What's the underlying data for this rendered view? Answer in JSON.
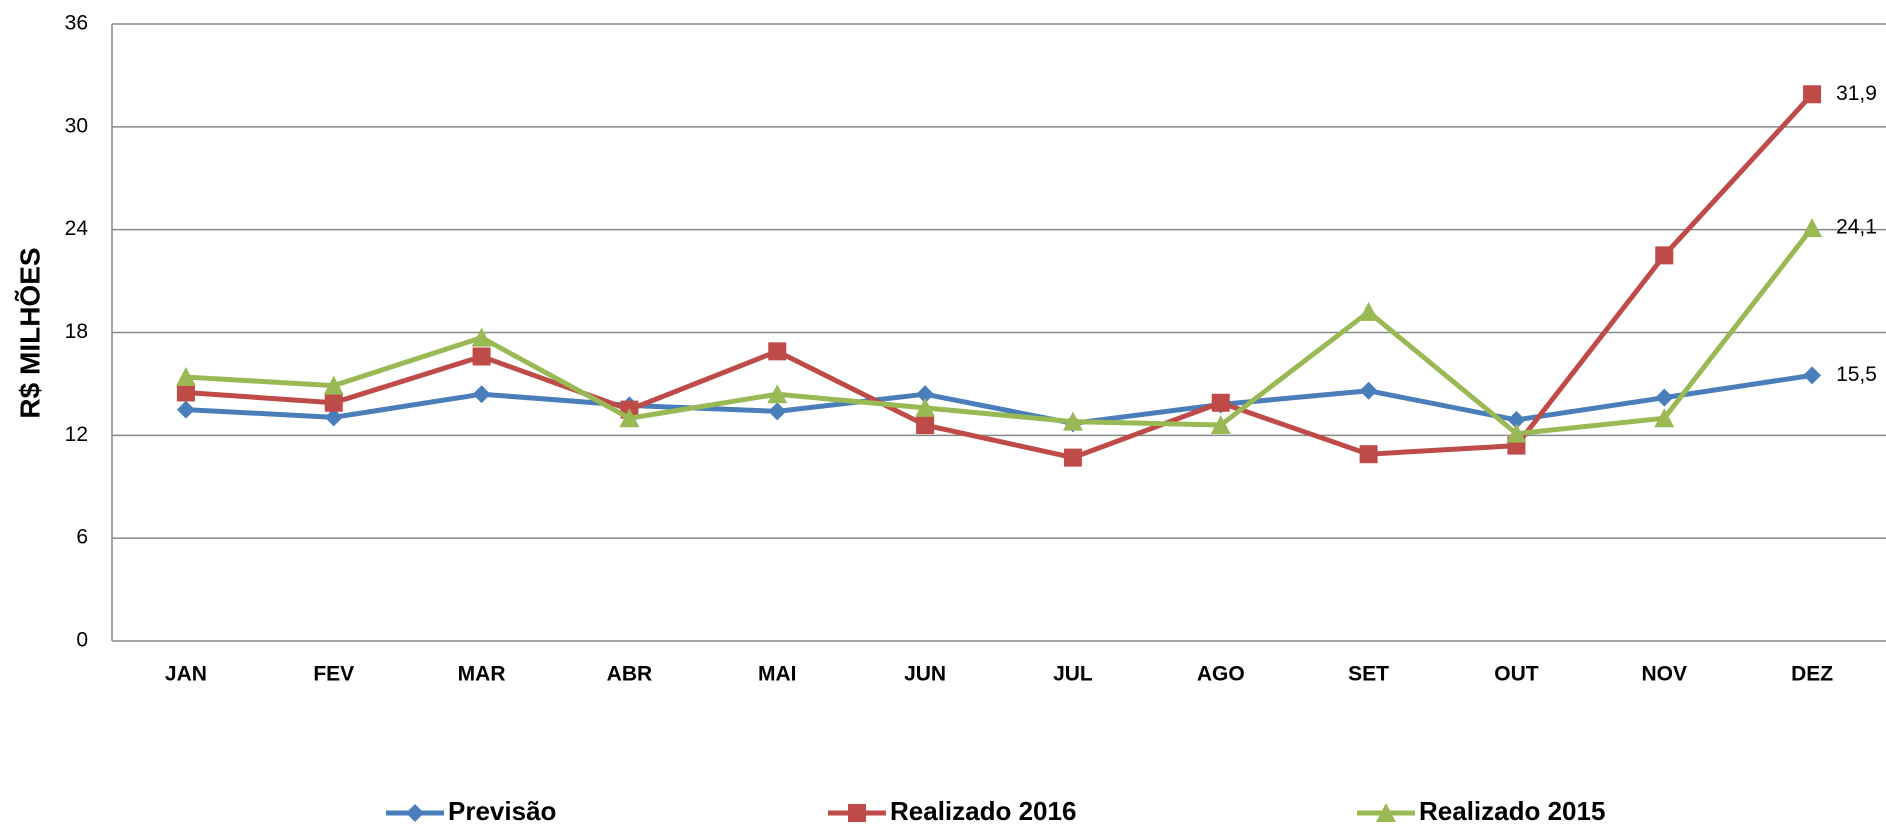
{
  "chart_data": {
    "type": "line",
    "ylabel": "R$ MILHÕES",
    "categories": [
      "JAN",
      "FEV",
      "MAR",
      "ABR",
      "MAI",
      "JUN",
      "JUL",
      "AGO",
      "SET",
      "OUT",
      "NOV",
      "DEZ"
    ],
    "series": [
      {
        "name": "Previsão",
        "color": "#4a7ebb",
        "marker": "diamond",
        "values": [
          13.5,
          13.05,
          14.4,
          13.75,
          13.4,
          14.4,
          12.7,
          13.8,
          14.6,
          12.9,
          14.2,
          15.5
        ],
        "value_labels": [
          null,
          null,
          null,
          null,
          null,
          null,
          null,
          null,
          null,
          null,
          null,
          "15,5"
        ]
      },
      {
        "name": "Realizado 2016",
        "color": "#be4b48",
        "marker": "square",
        "values": [
          14.5,
          13.9,
          16.6,
          13.5,
          16.9,
          12.6,
          10.7,
          13.9,
          10.9,
          11.4,
          22.5,
          31.9
        ],
        "value_labels": [
          null,
          null,
          null,
          null,
          null,
          null,
          null,
          null,
          null,
          null,
          null,
          "31,9"
        ]
      },
      {
        "name": "Realizado 2015",
        "color": "#98b954",
        "marker": "triangle",
        "values": [
          15.4,
          14.9,
          17.7,
          13.0,
          14.4,
          13.6,
          12.8,
          12.6,
          19.2,
          12.1,
          13.0,
          24.1
        ],
        "value_labels": [
          null,
          null,
          null,
          null,
          null,
          null,
          null,
          null,
          null,
          null,
          null,
          "24,1"
        ]
      }
    ],
    "ylim": [
      0,
      36
    ],
    "yticks": [
      0,
      6,
      12,
      18,
      24,
      30,
      36
    ],
    "grid": true,
    "legend": "bottom"
  }
}
